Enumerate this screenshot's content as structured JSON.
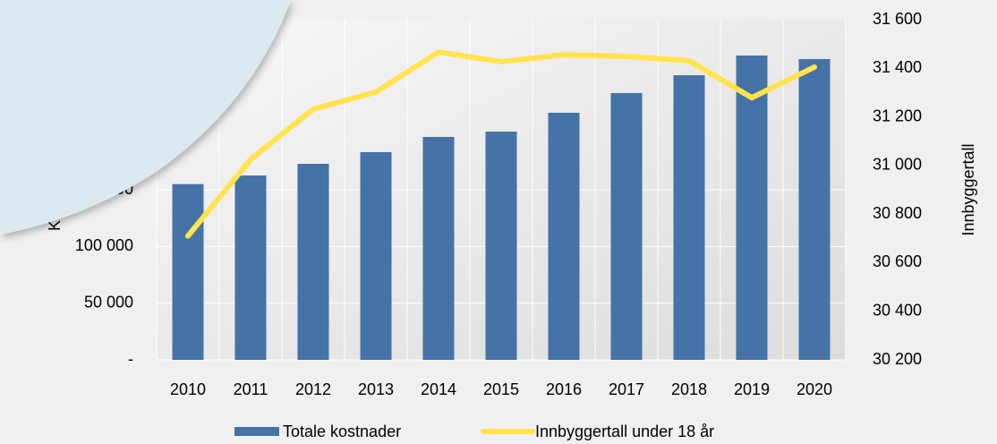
{
  "chart_data": {
    "type": "bar_line",
    "y_label": "Kost",
    "y2_label": "Innbyggertall",
    "categories": [
      "2010",
      "2011",
      "2012",
      "2013",
      "2014",
      "2015",
      "2016",
      "2017",
      "2018",
      "2019",
      "2020"
    ],
    "series": [
      {
        "name": "Totale kostnader",
        "type": "bar",
        "color": "#4572a7",
        "values": [
          155000,
          162600,
          172900,
          183200,
          196600,
          201300,
          217900,
          235300,
          251000,
          268400,
          265300
        ]
      },
      {
        "name": "Innbyggertall under 18 år",
        "type": "line",
        "axis": "y2",
        "color": "#ffe34d",
        "values": [
          30710,
          31025,
          31232,
          31302,
          31467,
          31427,
          31456,
          31449,
          31431,
          31279,
          31405
        ]
      }
    ],
    "ylim": [
      0,
      300000
    ],
    "yticks": [
      {
        "value": 0,
        "label": "-"
      },
      {
        "value": 50000,
        "label": "50 000"
      },
      {
        "value": 100000,
        "label": "100 000"
      },
      {
        "value": 150000,
        "label": "150 000"
      }
    ],
    "y2lim": [
      30200,
      31600
    ],
    "y2ticks": [
      {
        "value": 30200,
        "label": "30 200"
      },
      {
        "value": 30400,
        "label": "30 400"
      },
      {
        "value": 30600,
        "label": "30 600"
      },
      {
        "value": 30800,
        "label": "30 800"
      },
      {
        "value": 31000,
        "label": "31 000"
      },
      {
        "value": 31200,
        "label": "31 200"
      },
      {
        "value": 31400,
        "label": "31 400"
      },
      {
        "value": 31600,
        "label": "31 600"
      }
    ],
    "grid": true
  }
}
